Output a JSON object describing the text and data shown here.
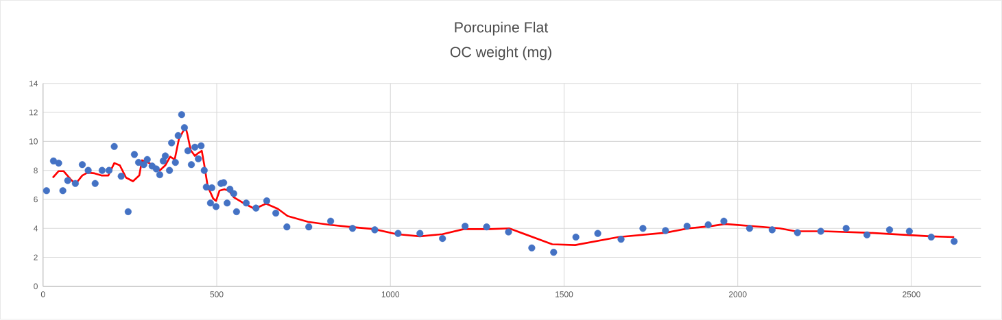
{
  "chart_data": {
    "type": "scatter",
    "title": "Porcupine Flat",
    "subtitle": "OC weight (mg)",
    "xlim": [
      0,
      2700
    ],
    "ylim": [
      0,
      14
    ],
    "xticks": [
      0,
      500,
      1000,
      1500,
      2000,
      2500
    ],
    "yticks": [
      0,
      2,
      4,
      6,
      8,
      10,
      12,
      14
    ],
    "grid": true,
    "legend": false,
    "series": [
      {
        "marker": "circle",
        "color": "#4472c4",
        "x": [
          10,
          30,
          45,
          57,
          71,
          93,
          113,
          130,
          150,
          170,
          190,
          205,
          225,
          245,
          263,
          275,
          290,
          300,
          314,
          326,
          336,
          346,
          352,
          364,
          370,
          381,
          389,
          399,
          407,
          417,
          427,
          437,
          447,
          455,
          464,
          470,
          482,
          486,
          498,
          512,
          520,
          530,
          538,
          549,
          557,
          585,
          613,
          644,
          670,
          702,
          765,
          828,
          891,
          955,
          1022,
          1085,
          1150,
          1215,
          1277,
          1340,
          1407,
          1470,
          1534,
          1597,
          1664,
          1727,
          1792,
          1854,
          1915,
          1960,
          2034,
          2099,
          2172,
          2239,
          2312,
          2372,
          2437,
          2494,
          2557,
          2623
        ],
        "values": [
          6.6,
          8.65,
          8.5,
          6.6,
          7.3,
          7.1,
          8.4,
          8.0,
          7.1,
          8.0,
          8.0,
          9.65,
          7.6,
          5.15,
          9.1,
          8.55,
          8.4,
          8.75,
          8.3,
          8.1,
          7.7,
          8.65,
          9.0,
          8.0,
          9.9,
          8.55,
          10.4,
          11.85,
          10.95,
          9.35,
          8.4,
          9.6,
          8.8,
          9.7,
          8.0,
          6.85,
          5.75,
          6.8,
          5.5,
          7.1,
          7.15,
          5.75,
          6.7,
          6.4,
          5.15,
          5.75,
          5.4,
          5.9,
          5.05,
          4.1,
          4.1,
          4.5,
          4.0,
          3.9,
          3.65,
          3.65,
          3.3,
          4.15,
          4.1,
          3.75,
          2.65,
          2.35,
          3.4,
          3.65,
          3.25,
          4.0,
          3.85,
          4.15,
          4.25,
          4.5,
          4.0,
          3.9,
          3.7,
          3.8,
          4.0,
          3.55,
          3.9,
          3.8,
          3.4,
          3.1
        ]
      },
      {
        "type": "line",
        "marker": "none",
        "color": "#ff0000",
        "x": [
          28,
          45,
          59,
          79,
          93,
          113,
          128,
          148,
          168,
          188,
          205,
          221,
          239,
          259,
          277,
          285,
          306,
          326,
          336,
          352,
          366,
          379,
          391,
          410,
          415,
          425,
          437,
          447,
          457,
          464,
          474,
          490,
          498,
          508,
          522,
          535,
          549,
          573,
          609,
          642,
          676,
          704,
          763,
          824,
          885,
          953,
          1018,
          1085,
          1150,
          1211,
          1285,
          1342,
          1466,
          1532,
          1656,
          1792,
          1858,
          1921,
          1964,
          2121,
          2166,
          2247,
          2372,
          2555,
          2623
        ],
        "values": [
          7.5,
          7.95,
          7.95,
          7.4,
          7.05,
          7.65,
          7.85,
          7.8,
          7.65,
          7.65,
          8.5,
          8.35,
          7.5,
          7.25,
          7.65,
          8.7,
          8.5,
          8.2,
          8.0,
          8.35,
          8.95,
          8.75,
          10.15,
          11.0,
          10.55,
          9.4,
          9.0,
          9.2,
          9.35,
          8.4,
          6.9,
          6.05,
          5.9,
          6.6,
          6.7,
          6.6,
          6.15,
          5.8,
          5.35,
          5.7,
          5.35,
          4.85,
          4.45,
          4.25,
          4.1,
          3.95,
          3.6,
          3.45,
          3.6,
          3.95,
          3.95,
          4.0,
          2.9,
          2.85,
          3.4,
          3.7,
          4.0,
          4.15,
          4.3,
          4.0,
          3.8,
          3.8,
          3.7,
          3.45,
          3.4
        ]
      }
    ]
  }
}
